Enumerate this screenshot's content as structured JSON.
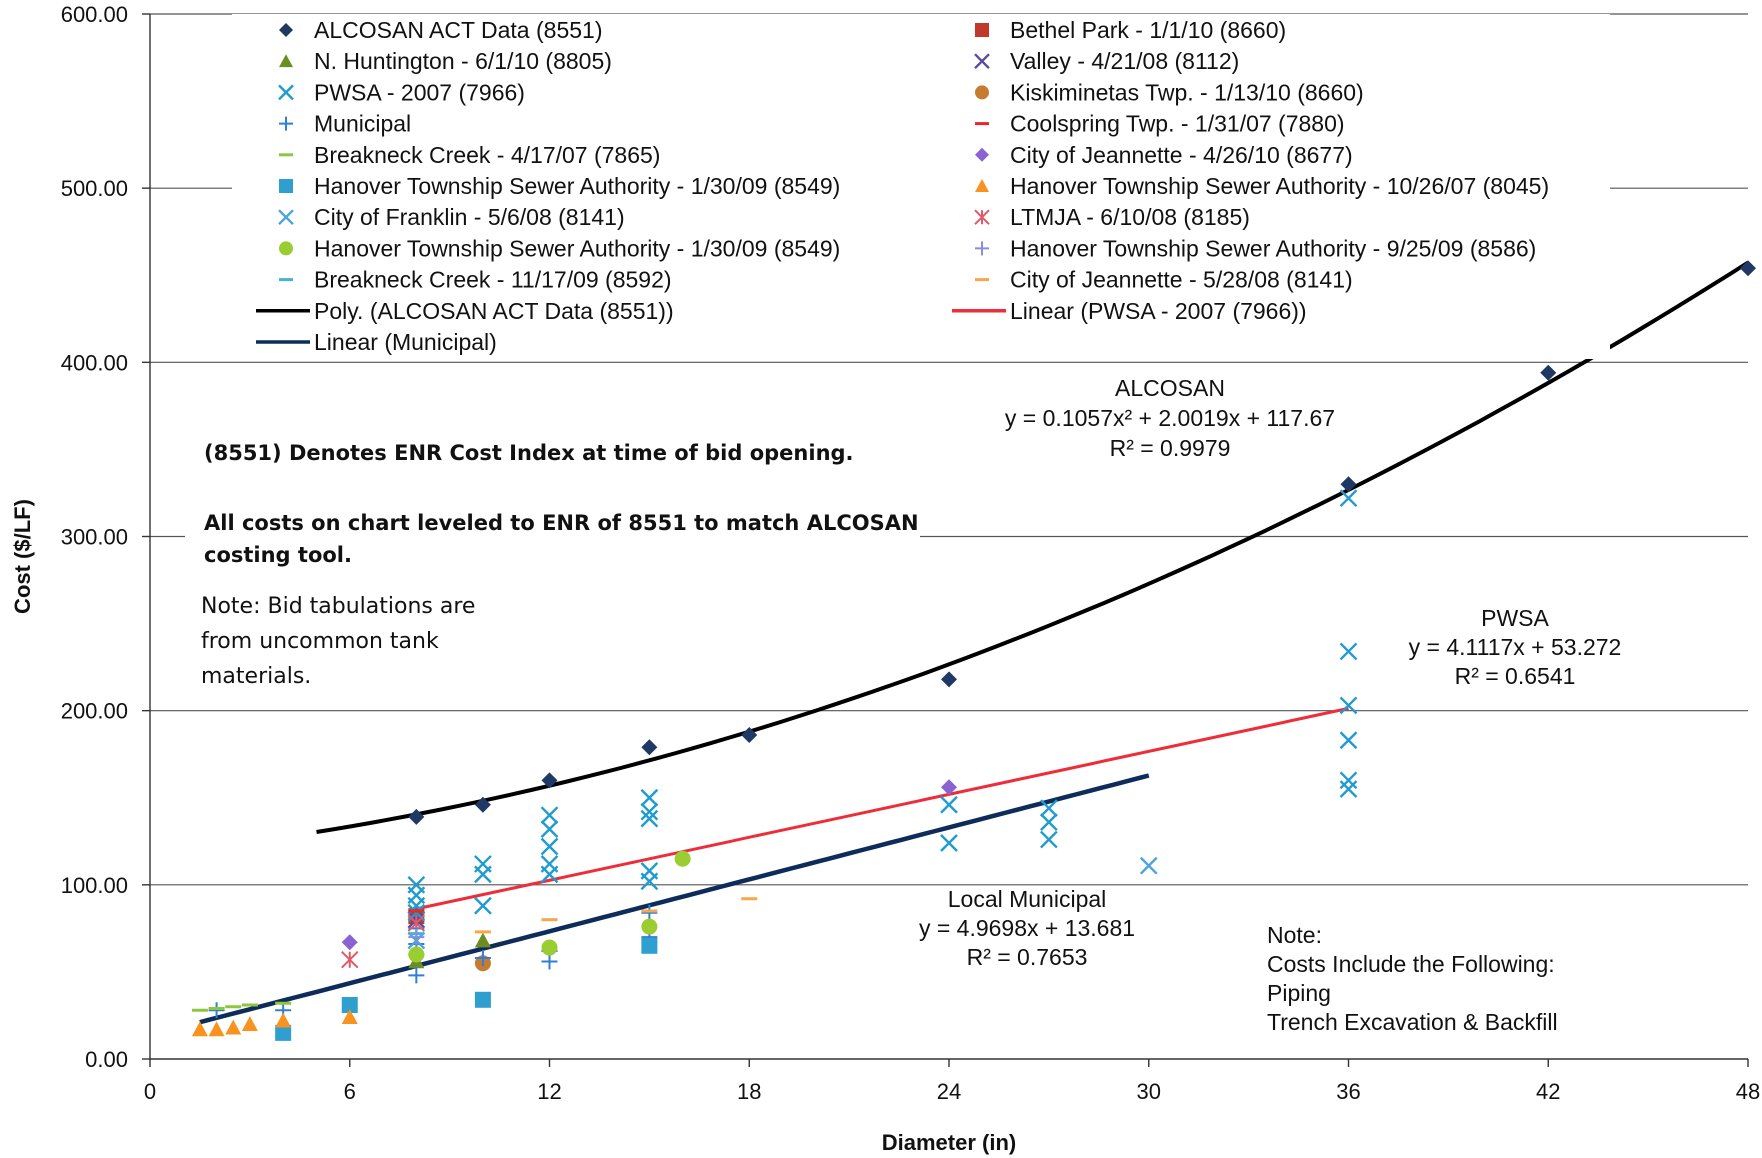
{
  "chart_data": {
    "type": "scatter",
    "title": "",
    "xlabel": "Diameter (in)",
    "ylabel": "Cost ($/LF)",
    "xlim": [
      0,
      48
    ],
    "ylim": [
      0,
      600
    ],
    "x_ticks": [
      "0",
      "6",
      "12",
      "18",
      "24",
      "30",
      "36",
      "42",
      "48"
    ],
    "y_ticks": [
      "0.00",
      "100.00",
      "200.00",
      "300.00",
      "400.00",
      "500.00",
      "600.00"
    ],
    "grid": "horizontal",
    "legend_position": "top",
    "series": [
      {
        "name": "ALCOSAN ACT Data (8551)",
        "marker": "diamond",
        "color": "#1f3864",
        "points": [
          [
            8,
            139
          ],
          [
            10,
            146
          ],
          [
            12,
            160
          ],
          [
            15,
            179
          ],
          [
            18,
            186
          ],
          [
            24,
            218
          ],
          [
            36,
            330
          ],
          [
            42,
            394
          ],
          [
            48,
            454
          ]
        ]
      },
      {
        "name": "Bethel Park - 1/1/10 (8660)",
        "marker": "square",
        "color": "#c0392b",
        "points": [
          [
            8,
            82
          ]
        ]
      },
      {
        "name": "N. Huntington - 6/1/10 (8805)",
        "marker": "triangle",
        "color": "#6b8e23",
        "points": [
          [
            8,
            56
          ],
          [
            10,
            68
          ]
        ]
      },
      {
        "name": "Valley - 4/21/08 (8112)",
        "marker": "x",
        "color": "#5b4a9c",
        "points": [
          [
            8,
            80
          ]
        ]
      },
      {
        "name": "PWSA - 2007 (7966)",
        "marker": "x",
        "color": "#1e9ccf",
        "points": [
          [
            8,
            100
          ],
          [
            8,
            94
          ],
          [
            8,
            88
          ],
          [
            8,
            84
          ],
          [
            10,
            112
          ],
          [
            10,
            106
          ],
          [
            10,
            88
          ],
          [
            12,
            140
          ],
          [
            12,
            132
          ],
          [
            12,
            122
          ],
          [
            12,
            112
          ],
          [
            12,
            106
          ],
          [
            15,
            150
          ],
          [
            15,
            142
          ],
          [
            15,
            138
          ],
          [
            15,
            108
          ],
          [
            15,
            102
          ],
          [
            24,
            146
          ],
          [
            24,
            124
          ],
          [
            27,
            144
          ],
          [
            27,
            136
          ],
          [
            27,
            126
          ],
          [
            36,
            322
          ],
          [
            36,
            234
          ],
          [
            36,
            203
          ],
          [
            36,
            183
          ],
          [
            36,
            160
          ],
          [
            36,
            155
          ]
        ]
      },
      {
        "name": "Kiskiminetas Twp. - 1/13/10 (8660)",
        "marker": "circle",
        "color": "#c77b30",
        "points": [
          [
            10,
            55
          ]
        ]
      },
      {
        "name": "Municipal",
        "marker": "plus",
        "color": "#2f7fd6",
        "points": [
          [
            2,
            28
          ],
          [
            4,
            28
          ],
          [
            8,
            48
          ],
          [
            8,
            60
          ],
          [
            8,
            75
          ],
          [
            8,
            66
          ],
          [
            10,
            58
          ],
          [
            12,
            56
          ],
          [
            12,
            62
          ],
          [
            15,
            70
          ],
          [
            15,
            84
          ]
        ]
      },
      {
        "name": "Coolspring Twp. - 1/31/07 (7880)",
        "marker": "dash",
        "color": "#e8262b",
        "points": [
          [
            8,
            85
          ]
        ]
      },
      {
        "name": "Breakneck Creek - 4/17/07 (7865)",
        "marker": "dash",
        "color": "#8dc63f",
        "points": [
          [
            1.5,
            28
          ],
          [
            2,
            29
          ],
          [
            2.5,
            30
          ],
          [
            3,
            31
          ],
          [
            4,
            32
          ]
        ]
      },
      {
        "name": "City of Jeannette - 4/26/10 (8677)",
        "marker": "diamond",
        "color": "#8a63d2",
        "points": [
          [
            6,
            67
          ],
          [
            24,
            156
          ]
        ]
      },
      {
        "name": "Hanover Township Sewer Authority - 1/30/09 (8549)",
        "marker": "square",
        "color": "#2f9fd0",
        "points": [
          [
            4,
            15
          ],
          [
            6,
            31
          ],
          [
            10,
            34
          ],
          [
            15,
            65
          ]
        ]
      },
      {
        "name": "Hanover Township Sewer Authority - 10/26/07 (8045)",
        "marker": "triangle",
        "color": "#f7931e",
        "points": [
          [
            1.5,
            17
          ],
          [
            2,
            17
          ],
          [
            2.5,
            18
          ],
          [
            3,
            20
          ],
          [
            4,
            22
          ],
          [
            6,
            24
          ]
        ]
      },
      {
        "name": "City of Franklin - 5/6/08 (8141)",
        "marker": "x",
        "color": "#4aa3df",
        "points": [
          [
            30,
            111
          ],
          [
            8,
            68
          ]
        ]
      },
      {
        "name": "LTMJA - 6/10/08 (8185)",
        "marker": "asterisk",
        "color": "#e05a6a",
        "points": [
          [
            6,
            57
          ],
          [
            8,
            78
          ]
        ]
      },
      {
        "name": "Hanover Township Sewer Authority - 1/30/09 (8549)",
        "marker": "circle",
        "color": "#9acd32",
        "points": [
          [
            8,
            60
          ],
          [
            12,
            64
          ],
          [
            15,
            76
          ],
          [
            16,
            115
          ]
        ]
      },
      {
        "name": "Hanover Township Sewer Authority - 9/25/09 (8586)",
        "marker": "plus",
        "color": "#8c8cdc",
        "points": [
          [
            8,
            70
          ]
        ]
      },
      {
        "name": "Breakneck Creek - 11/17/09 (8592)",
        "marker": "dash",
        "color": "#4ab0d9",
        "points": [
          [
            8,
            72
          ]
        ]
      },
      {
        "name": "City of Jeannette - 5/28/08 (8141)",
        "marker": "dash",
        "color": "#f7a64b",
        "points": [
          [
            10,
            73
          ],
          [
            12,
            80
          ],
          [
            15,
            85
          ],
          [
            18,
            92
          ]
        ]
      }
    ],
    "trendlines": [
      {
        "name": "Poly. (ALCOSAN ACT Data (8551))",
        "kind": "poly2",
        "color": "#000000",
        "coef": [
          0.1057,
          2.0019,
          117.67
        ],
        "range": [
          5,
          48
        ]
      },
      {
        "name": "Linear (PWSA - 2007 (7966))",
        "kind": "linear",
        "color": "#ee2d3a",
        "coef": [
          4.1117,
          53.272
        ],
        "range": [
          8,
          36
        ]
      },
      {
        "name": "Linear (Municipal)",
        "kind": "linear",
        "color": "#0d2c5a",
        "coef": [
          4.9698,
          13.681
        ],
        "range": [
          1.5,
          30
        ]
      }
    ],
    "annotations": [
      {
        "lines": [
          "ALCOSAN",
          "y = 0.1057x² + 2.0019x + 117.67",
          "R² = 0.9979"
        ]
      },
      {
        "lines": [
          "PWSA",
          "y = 4.1117x + 53.272",
          "R² = 0.6541"
        ]
      },
      {
        "lines": [
          "Local Municipal",
          "y = 4.9698x + 13.681",
          "R² = 0.7653"
        ]
      },
      {
        "lines": [
          "Note:",
          "Costs Include the Following:",
          "Piping",
          "Trench Excavation & Backfill"
        ]
      }
    ],
    "notes": {
      "enr": "(8551) Denotes ENR Cost Index at time of bid opening.",
      "leveled": [
        "All costs on chart leveled to ENR of 8551 to match ALCOSAN",
        "costing tool."
      ],
      "bid": [
        "Note: Bid tabulations are",
        "from uncommon tank",
        "materials."
      ]
    }
  }
}
